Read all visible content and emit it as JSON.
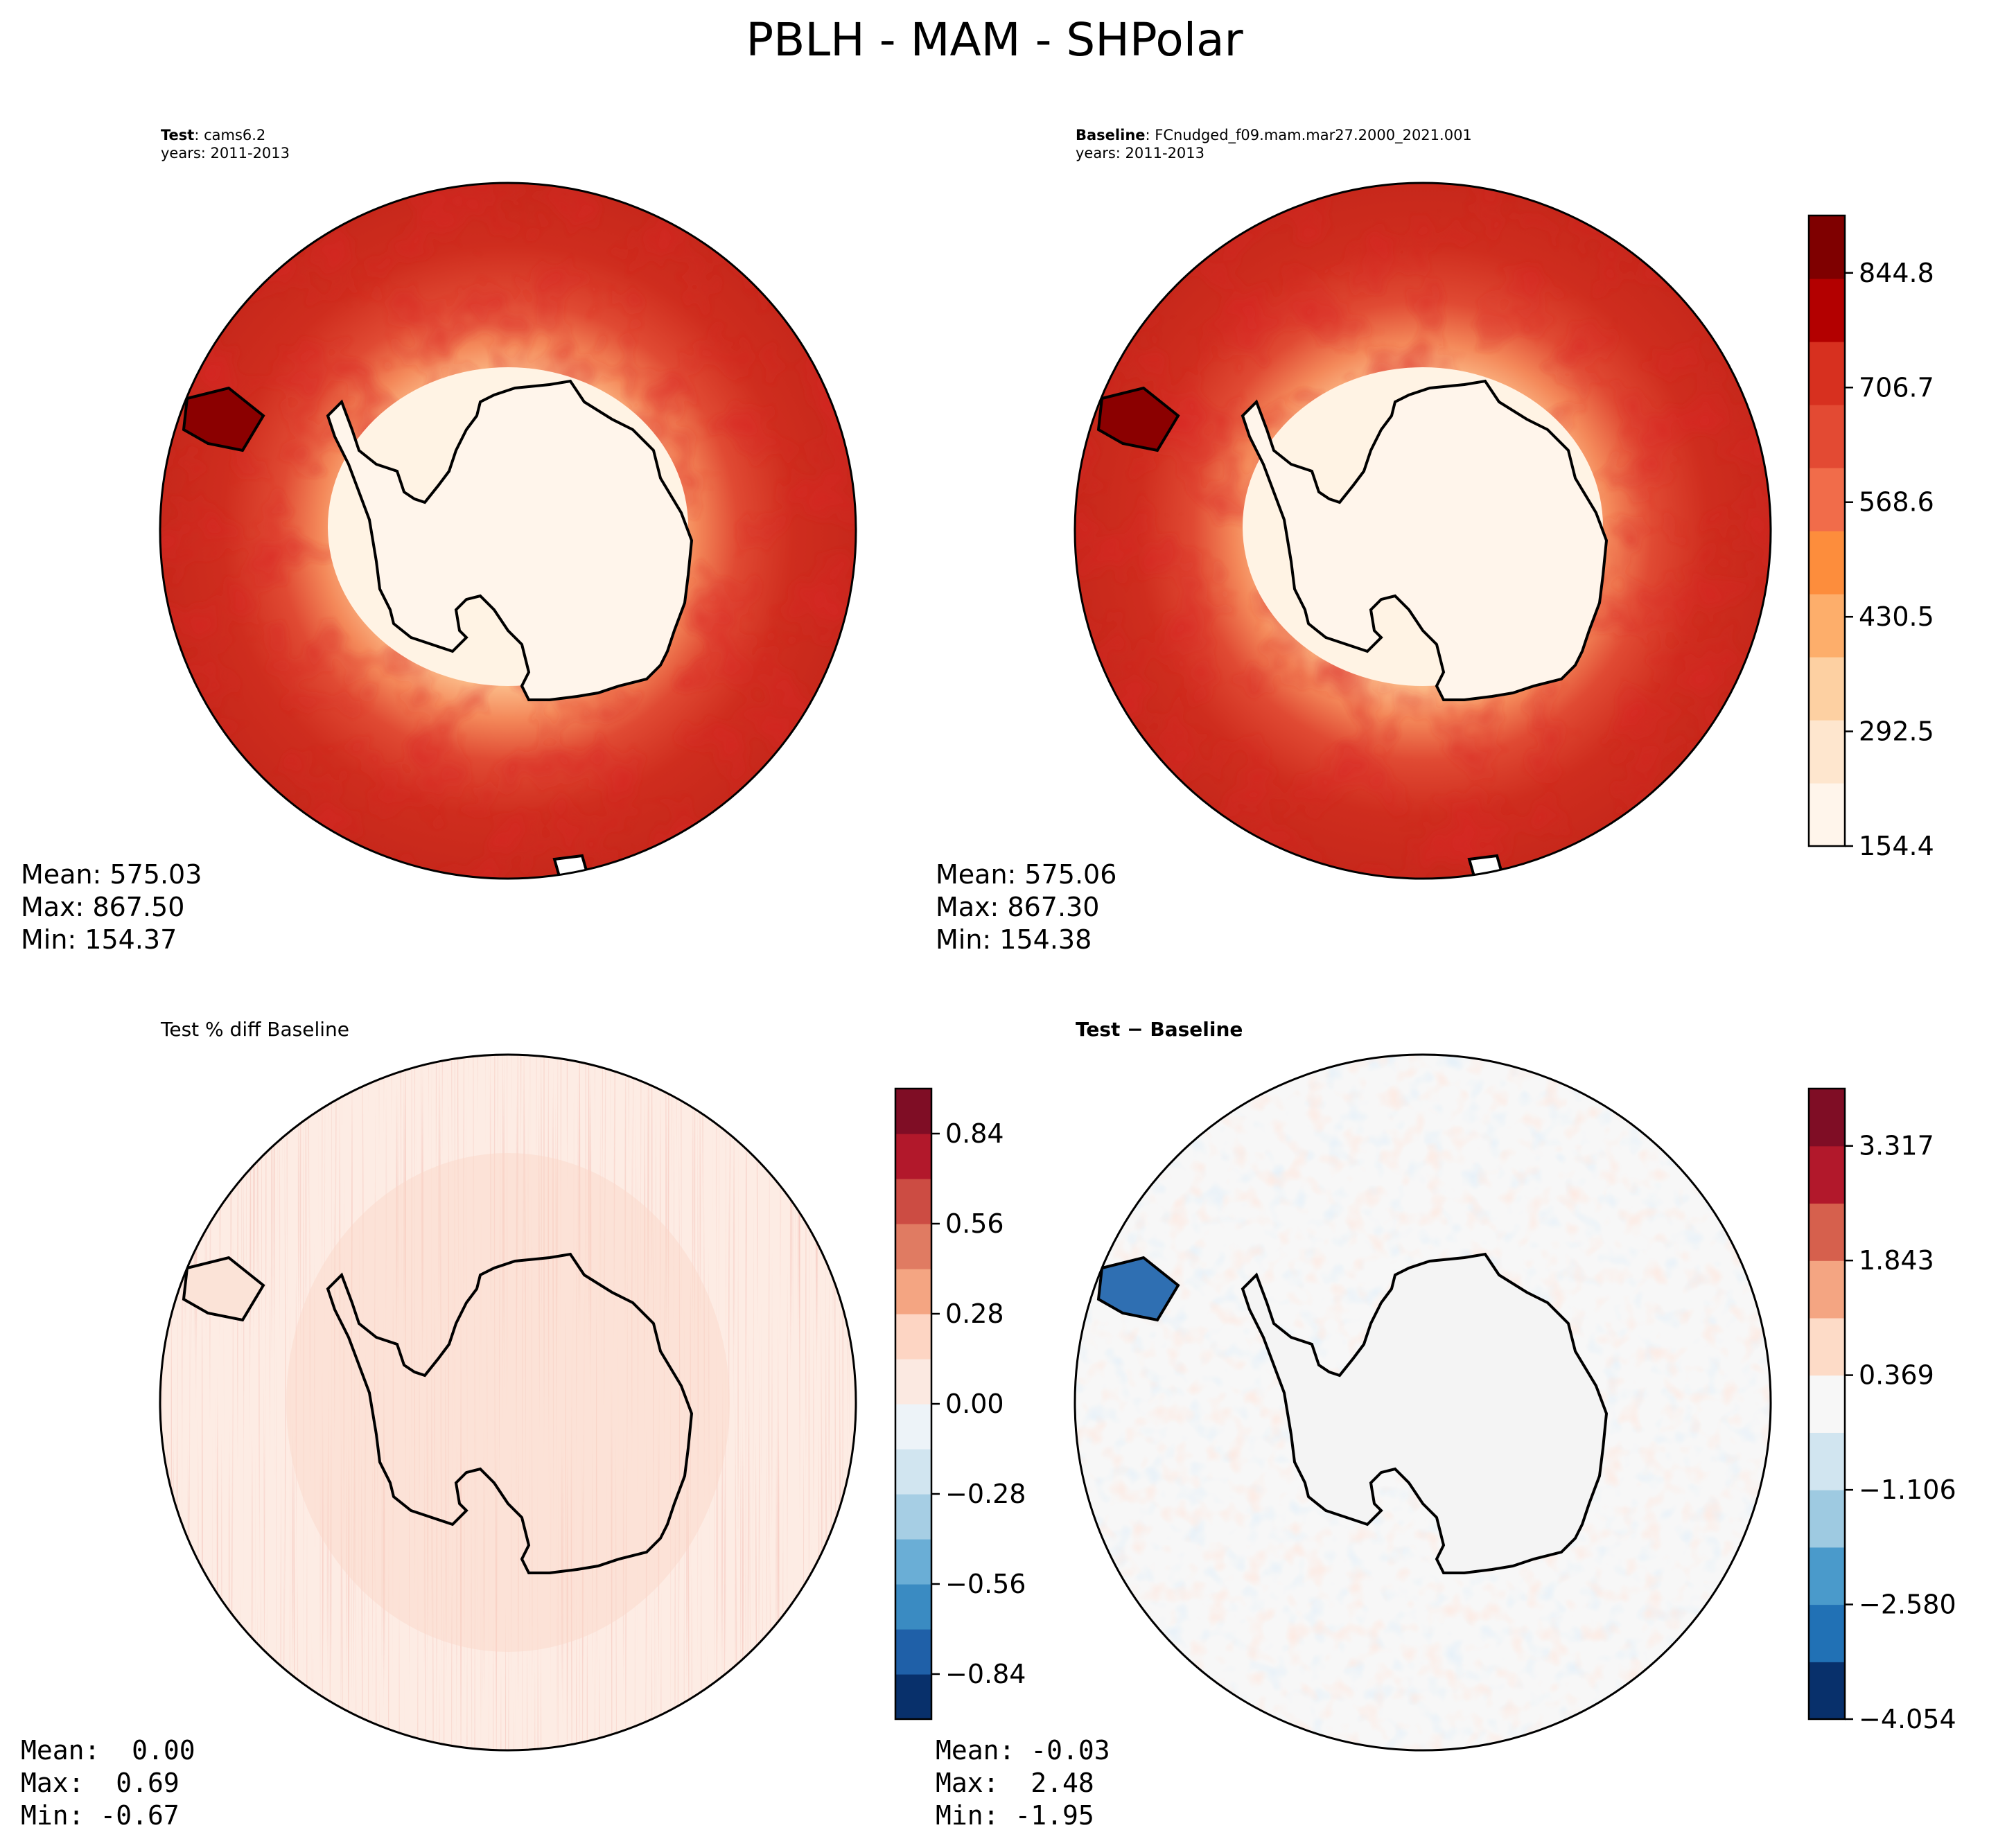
{
  "chart_data": {
    "type": "contour_map",
    "title": "PBLH - MAM - SHPolar",
    "panels": [
      {
        "id": "test",
        "label_bold": "Test",
        "label_rest": ": cams6.2",
        "years": "years: 2011-2013",
        "stats": {
          "mean": "Mean: 575.03",
          "max": "Max: 867.50",
          "min": "Min: 154.37"
        },
        "field": "pblh",
        "colormap": "OrRd-like (Reds)"
      },
      {
        "id": "baseline",
        "label_bold": "Baseline",
        "label_rest": ": FCnudged_f09.mam.mar27.2000_2021.001",
        "years": "years: 2011-2013",
        "stats": {
          "mean": "Mean: 575.06",
          "max": "Max: 867.30",
          "min": "Min: 154.38"
        },
        "field": "pblh",
        "colorbar": {
          "ticks": [
            "844.8",
            "706.7",
            "568.6",
            "430.5",
            "292.5",
            "154.4"
          ],
          "tick_values": [
            844.8,
            706.7,
            568.6,
            430.5,
            292.5,
            154.4
          ],
          "range": [
            154.4,
            913.9
          ],
          "colors": [
            "#fff5eb",
            "#fee6ce",
            "#fdd0a2",
            "#fdae6b",
            "#fd8d3c",
            "#f16c4a",
            "#e34a33",
            "#d7301f",
            "#b30000",
            "#7f0000"
          ]
        }
      },
      {
        "id": "pctdiff",
        "label": "Test % diff Baseline",
        "stats": {
          "mean": "Mean:  0.00",
          "max": "Max:  0.69",
          "min": "Min: -0.67"
        },
        "field": "pctdiff",
        "colorbar": {
          "ticks": [
            "0.84",
            "0.56",
            "0.28",
            "0.00",
            "−0.28",
            "−0.56",
            "−0.84"
          ],
          "tick_values": [
            0.84,
            0.56,
            0.28,
            0.0,
            -0.28,
            -0.56,
            -0.84
          ],
          "range": [
            -0.98,
            0.98
          ],
          "colors": [
            "#08306b",
            "#1f60a8",
            "#3a8bc2",
            "#6aaed6",
            "#a6cee4",
            "#d1e5f0",
            "#edf3f8",
            "#fbe9e1",
            "#fdd5c3",
            "#f4a582",
            "#e07b62",
            "#cc4c43",
            "#b2182b",
            "#7f0d25"
          ]
        }
      },
      {
        "id": "diff",
        "label": "Test − Baseline",
        "stats": {
          "mean": "Mean: -0.03",
          "max": "Max:  2.48",
          "min": "Min: -1.95"
        },
        "field": "diff",
        "colorbar": {
          "ticks": [
            "3.317",
            "1.843",
            "0.369",
            "−1.106",
            "−2.580",
            "−4.054"
          ],
          "tick_values": [
            3.317,
            1.843,
            0.369,
            -1.106,
            -2.58,
            -4.054
          ],
          "range": [
            -4.054,
            4.054
          ],
          "colors": [
            "#08306b",
            "#2171b5",
            "#4a9acb",
            "#9ecae1",
            "#d1e5f0",
            "#f7f7f7",
            "#fddbc7",
            "#f4a582",
            "#d6604d",
            "#b2182b",
            "#7f0d25"
          ]
        }
      }
    ]
  }
}
